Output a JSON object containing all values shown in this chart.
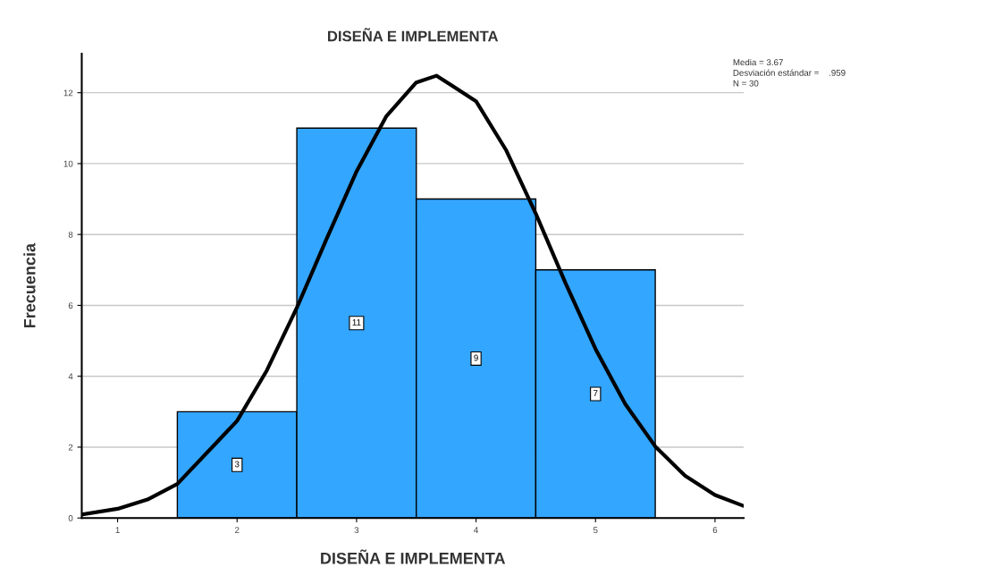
{
  "chart_data": {
    "type": "histogram",
    "title": "DISEÑA E IMPLEMENTA",
    "xlabel": "DISEÑA E IMPLEMENTA",
    "ylabel": "Frecuencia",
    "bins": [
      1.5,
      2.5,
      3.5,
      4.5,
      5.5
    ],
    "values": [
      3,
      11,
      9,
      7
    ],
    "color": "#33a6ff",
    "value_labels": [
      "3",
      "11",
      "9",
      "7"
    ],
    "series": [
      {
        "type": "line",
        "color": "#000000",
        "x": [
          0.7,
          1.0,
          1.25,
          1.5,
          2.0,
          2.25,
          2.5,
          2.75,
          3.0,
          3.25,
          3.5,
          3.67,
          4.0,
          4.25,
          4.5,
          4.75,
          5.0,
          5.25,
          5.5,
          5.75,
          6.0,
          6.24
        ],
        "values": [
          0.1,
          0.26,
          0.52,
          0.96,
          2.74,
          4.17,
          5.93,
          7.88,
          9.78,
          11.34,
          12.29,
          12.48,
          11.76,
          10.39,
          8.59,
          6.62,
          4.77,
          3.21,
          2.02,
          1.19,
          0.65,
          0.34
        ]
      }
    ],
    "xlim": [
      0.7,
      6.24
    ],
    "xticks": [
      1,
      2,
      3,
      4,
      5,
      6
    ],
    "ylim": [
      0,
      13.1
    ],
    "yticks": [
      0,
      2,
      4,
      6,
      8,
      10,
      12
    ],
    "grid": "y",
    "annotations": [
      "Media = 3.67",
      "Desviación estándar =    .959",
      "N = 30"
    ]
  }
}
